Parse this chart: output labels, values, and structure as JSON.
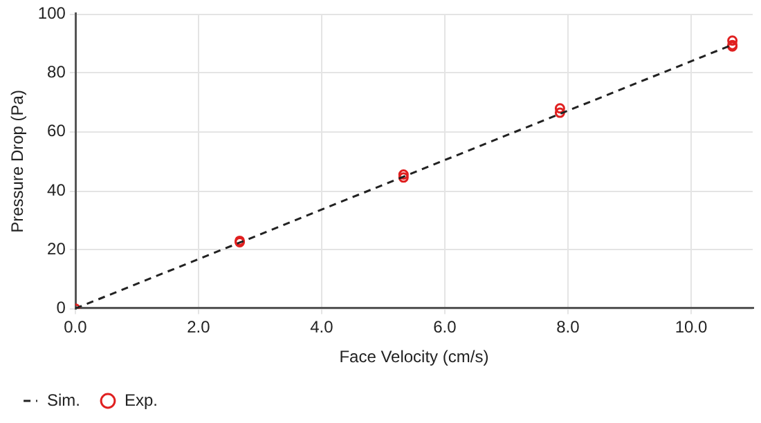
{
  "chart_data": {
    "type": "scatter",
    "xlabel": "Face Velocity (cm/s)",
    "ylabel": "Pressure Drop (Pa)",
    "xlim": [
      0,
      11
    ],
    "xticks": [
      {
        "value": 0,
        "label": "0.0"
      },
      {
        "value": 2,
        "label": "2.0"
      },
      {
        "value": 4,
        "label": "4.0"
      },
      {
        "value": 6,
        "label": "6.0"
      },
      {
        "value": 8,
        "label": "8.0"
      },
      {
        "value": 10,
        "label": "10.0"
      }
    ],
    "ylim": [
      0,
      100
    ],
    "yticks": [
      0,
      20,
      40,
      60,
      80,
      100
    ],
    "grid": true,
    "legend": "bottom left",
    "series": [
      {
        "name": "Sim.",
        "type": "line",
        "color": "#222222",
        "line_style": "dashed",
        "marker": "none",
        "x": [
          0,
          2.67,
          5.33,
          8,
          10.67
        ],
        "values": [
          0,
          22.4,
          44.8,
          67.2,
          89.6
        ]
      },
      {
        "name": "Exp.",
        "type": "scatter",
        "color": "#e02020",
        "marker": "circle",
        "x": [
          0,
          2.67,
          2.67,
          5.33,
          5.33,
          7.87,
          7.87,
          10.67,
          10.67,
          10.67
        ],
        "values": [
          0,
          22.5,
          23,
          44.5,
          45.5,
          66.5,
          68,
          89,
          89.5,
          91
        ]
      }
    ]
  }
}
